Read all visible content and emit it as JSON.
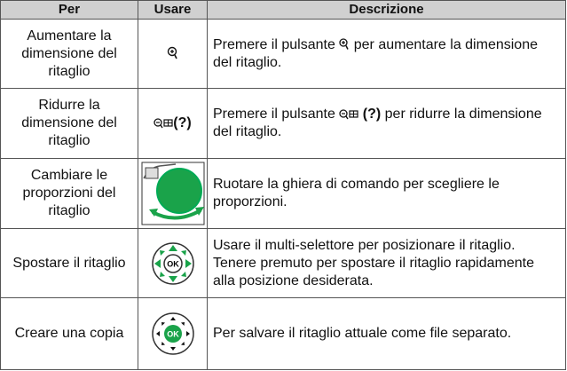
{
  "table": {
    "header": [
      "Per",
      "Usare",
      "Descrizione"
    ],
    "rows": [
      {
        "action": "Aumentare la dimensione del ritaglio",
        "description": [
          "Premere il pulsante",
          "per aumentare la dimensione del ritaglio."
        ]
      },
      {
        "action": "Ridurre la dimensione del ritaglio",
        "usare": "(?)",
        "description": [
          "Premere il pulsante",
          "(?)",
          "per ridurre la dimensione del ritaglio."
        ]
      },
      {
        "action": "Cambiare le proporzioni del ritaglio",
        "description": [
          "Ruotare la ghiera di comando per scegliere le proporzioni."
        ]
      },
      {
        "action": "Spostare il ritaglio",
        "description": [
          "Usare il multi-selettore per posizionare il ritaglio.  Tenere premuto per spostare il ritaglio rapidamente alla posizione desiderata."
        ]
      },
      {
        "action": "Creare una copia",
        "description": [
          "Per salvare il ritaglio attuale come file separato."
        ]
      }
    ]
  }
}
